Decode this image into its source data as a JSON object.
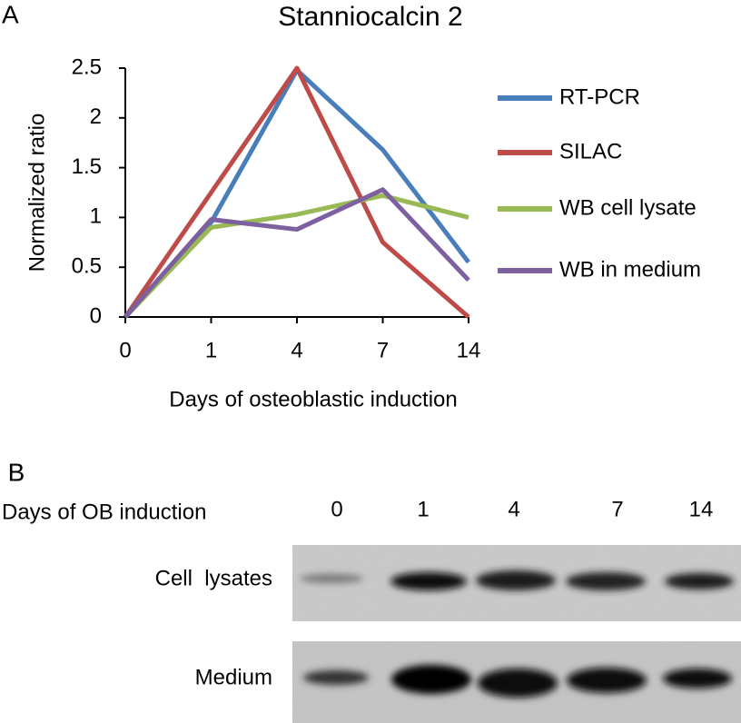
{
  "panel_labels": [
    "A",
    "B"
  ],
  "chart_data": {
    "type": "line",
    "title": "Stanniocalcin 2",
    "x_label": "Days of osteoblastic induction",
    "y_label": "Normalized ratio",
    "categories": [
      "0",
      "1",
      "4",
      "7",
      "14"
    ],
    "series": [
      {
        "name": "RT-PCR",
        "color": "#4a7ebb",
        "values": [
          0,
          0.95,
          2.48,
          1.68,
          0.55
        ]
      },
      {
        "name": "SILAC",
        "color": "#be4b48",
        "values": [
          0,
          1.25,
          2.5,
          0.75,
          0
        ]
      },
      {
        "name": "WB cell lysate",
        "color": "#98b954",
        "values": [
          0,
          0.9,
          1.03,
          1.22,
          1.0
        ]
      },
      {
        "name": "WB in medium",
        "color": "#7d60a0",
        "values": [
          0,
          0.98,
          0.88,
          1.28,
          0.37
        ]
      }
    ],
    "ylim": [
      0,
      2.5
    ],
    "yticks": [
      0,
      0.5,
      1,
      1.5,
      2,
      2.5
    ],
    "grid": false,
    "legend": "right"
  },
  "blot": {
    "header": "Days of OB induction",
    "lanes": [
      "0",
      "1",
      "4",
      "7",
      "14"
    ],
    "rows": [
      "Cell  lysates",
      "Medium"
    ]
  }
}
